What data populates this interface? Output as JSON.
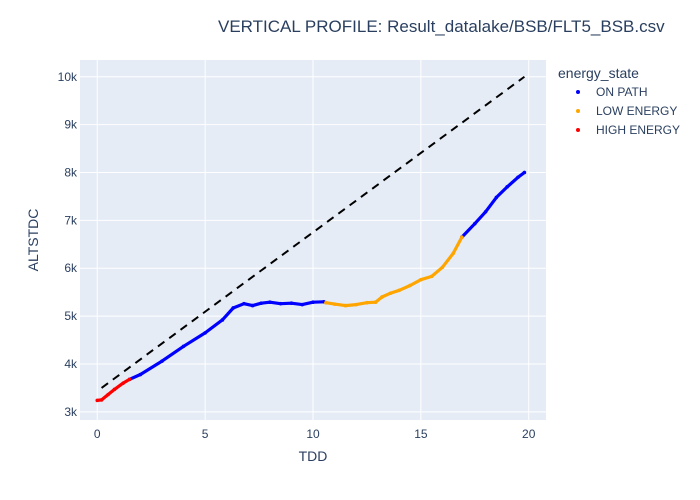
{
  "chart_data": {
    "type": "scatter",
    "title": "VERTICAL PROFILE: Result_datalake/BSB/FLT5_BSB.csv",
    "xlabel": "TDD",
    "ylabel": "ALTSTDC",
    "xlim": [
      -0.8,
      20.8
    ],
    "ylim": [
      2830,
      10350
    ],
    "x_ticks": [
      0,
      5,
      10,
      15,
      20
    ],
    "x_tick_labels": [
      "0",
      "5",
      "10",
      "15",
      "20"
    ],
    "y_ticks": [
      3000,
      4000,
      5000,
      6000,
      7000,
      8000,
      9000,
      10000
    ],
    "y_tick_labels": [
      "3k",
      "4k",
      "5k",
      "6k",
      "7k",
      "8k",
      "9k",
      "10k"
    ],
    "grid": true,
    "legend": {
      "title": "energy_state",
      "placement": "right"
    },
    "reference_line": {
      "style": "dashed",
      "color": "#000000",
      "x": [
        0.2,
        19.8
      ],
      "y": [
        3500,
        10000
      ]
    },
    "series": [
      {
        "name": "ON PATH",
        "color": "#0000ff",
        "segments": [
          {
            "x": [
              1.5,
              2.0,
              3.0,
              4.0,
              5.0,
              5.8,
              6.3,
              6.8,
              7.2,
              7.6,
              8.0,
              8.5,
              9.0,
              9.5,
              10.0,
              10.5
            ],
            "y": [
              3680,
              3780,
              4060,
              4370,
              4650,
              4920,
              5170,
              5260,
              5220,
              5270,
              5290,
              5260,
              5270,
              5240,
              5290,
              5300
            ]
          },
          {
            "x": [
              16.9,
              17.5,
              18.0,
              18.5,
              19.0,
              19.5,
              19.8
            ],
            "y": [
              6650,
              6930,
              7180,
              7480,
              7700,
              7900,
              8000
            ]
          }
        ]
      },
      {
        "name": "LOW ENERGY",
        "color": "#ffa500",
        "segments": [
          {
            "x": [
              10.6,
              11.0,
              11.5,
              12.0,
              12.5,
              12.9,
              13.2,
              13.6,
              14.0,
              14.5,
              15.0,
              15.5,
              16.0,
              16.5,
              16.9
            ],
            "y": [
              5280,
              5250,
              5220,
              5240,
              5280,
              5290,
              5400,
              5480,
              5540,
              5640,
              5760,
              5830,
              6020,
              6310,
              6650
            ]
          }
        ]
      },
      {
        "name": "HIGH ENERGY",
        "color": "#ff0000",
        "segments": [
          {
            "x": [
              0.0,
              0.2,
              0.5,
              0.8,
              1.2,
              1.5
            ],
            "y": [
              3240,
              3250,
              3360,
              3470,
              3600,
              3680
            ]
          }
        ]
      }
    ]
  }
}
